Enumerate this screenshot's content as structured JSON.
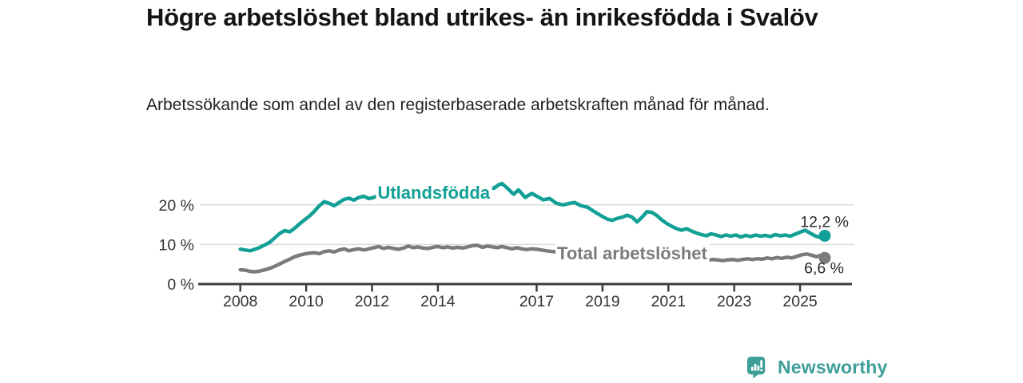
{
  "header": {
    "title": "Högre arbetslöshet bland utrikes- än inrikesfödda i Svalöv",
    "subtitle": "Arbetssökande som andel av den registerbaserade arbetskraften månad för månad."
  },
  "chart_data": {
    "type": "line",
    "title": "Högre arbetslöshet bland utrikes- än inrikesfödda i Svalöv",
    "subtitle": "Arbetssökande som andel av den registerbaserade arbetskraften månad för månad.",
    "grid": "horizontal-only",
    "legend_position": "inline-labels-on-lines",
    "x_range_years": [
      2006.77,
      2026.65
    ],
    "y_max_displayed": 26.5,
    "x_ticks": [
      {
        "year": 2008,
        "label": "2008"
      },
      {
        "year": 2010,
        "label": "2010"
      },
      {
        "year": 2012,
        "label": "2012"
      },
      {
        "year": 2014,
        "label": "2014"
      },
      {
        "year": 2017,
        "label": "2017"
      },
      {
        "year": 2019,
        "label": "2019"
      },
      {
        "year": 2021,
        "label": "2021"
      },
      {
        "year": 2023,
        "label": "2023"
      },
      {
        "year": 2025,
        "label": "2025"
      }
    ],
    "y_ticks": [
      {
        "value": 0,
        "label": "0 %"
      },
      {
        "value": 10,
        "label": "10 %"
      },
      {
        "value": 20,
        "label": "20 %"
      }
    ],
    "colors": {
      "grid": "#dcdcdc",
      "axis": "#3d3d3d",
      "tick_text": "#333333",
      "value_label_text": "#2b2b2b"
    },
    "series": [
      {
        "name": "Utlandsfödda",
        "color": "#12a096",
        "label_anchor": {
          "year": 2012.17,
          "value": 21.6
        },
        "end_dot": true,
        "end_label": "12,2 %",
        "end_value": 12.2,
        "end_label_offset": [
          30,
          -11
        ],
        "points": [
          [
            2008.0,
            8.8
          ],
          [
            2008.15,
            8.6
          ],
          [
            2008.3,
            8.4
          ],
          [
            2008.45,
            8.8
          ],
          [
            2008.6,
            9.3
          ],
          [
            2008.75,
            9.9
          ],
          [
            2008.9,
            10.6
          ],
          [
            2009.05,
            11.7
          ],
          [
            2009.2,
            12.8
          ],
          [
            2009.35,
            13.5
          ],
          [
            2009.5,
            13.2
          ],
          [
            2009.65,
            14.1
          ],
          [
            2009.8,
            15.2
          ],
          [
            2009.95,
            16.2
          ],
          [
            2010.1,
            17.2
          ],
          [
            2010.25,
            18.4
          ],
          [
            2010.4,
            19.8
          ],
          [
            2010.55,
            20.8
          ],
          [
            2010.7,
            20.4
          ],
          [
            2010.85,
            19.8
          ],
          [
            2011.0,
            20.6
          ],
          [
            2011.15,
            21.4
          ],
          [
            2011.3,
            21.7
          ],
          [
            2011.45,
            21.2
          ],
          [
            2011.6,
            21.9
          ],
          [
            2011.75,
            22.2
          ],
          [
            2011.9,
            21.6
          ],
          [
            2012.05,
            21.9
          ],
          [
            2012.2,
            22.4
          ],
          [
            2012.35,
            21.6
          ],
          [
            2012.5,
            21.4
          ],
          [
            2012.65,
            21.9
          ],
          [
            2012.8,
            22.2
          ],
          [
            2012.95,
            21.8
          ],
          [
            2013.1,
            22.3
          ],
          [
            2013.3,
            22.0
          ],
          [
            2013.5,
            22.6
          ],
          [
            2013.7,
            22.3
          ],
          [
            2013.9,
            22.8
          ],
          [
            2014.1,
            23.2
          ],
          [
            2014.3,
            22.9
          ],
          [
            2014.5,
            23.2
          ],
          [
            2014.7,
            23.5
          ],
          [
            2014.9,
            23.7
          ],
          [
            2015.1,
            24.2
          ],
          [
            2015.3,
            23.9
          ],
          [
            2015.5,
            24.5
          ],
          [
            2015.7,
            24.2
          ],
          [
            2015.85,
            25.1
          ],
          [
            2015.95,
            25.4
          ],
          [
            2016.1,
            24.3
          ],
          [
            2016.3,
            22.7
          ],
          [
            2016.45,
            23.8
          ],
          [
            2016.65,
            21.9
          ],
          [
            2016.85,
            22.9
          ],
          [
            2017.05,
            22.0
          ],
          [
            2017.2,
            21.3
          ],
          [
            2017.4,
            21.6
          ],
          [
            2017.6,
            20.4
          ],
          [
            2017.8,
            20.0
          ],
          [
            2018.0,
            20.4
          ],
          [
            2018.15,
            20.6
          ],
          [
            2018.35,
            19.8
          ],
          [
            2018.55,
            19.4
          ],
          [
            2018.75,
            18.3
          ],
          [
            2018.95,
            17.3
          ],
          [
            2019.15,
            16.4
          ],
          [
            2019.3,
            16.1
          ],
          [
            2019.45,
            16.6
          ],
          [
            2019.6,
            16.9
          ],
          [
            2019.75,
            17.4
          ],
          [
            2019.9,
            16.9
          ],
          [
            2020.05,
            15.7
          ],
          [
            2020.2,
            16.9
          ],
          [
            2020.35,
            18.3
          ],
          [
            2020.5,
            18.1
          ],
          [
            2020.65,
            17.3
          ],
          [
            2020.8,
            16.2
          ],
          [
            2020.95,
            15.3
          ],
          [
            2021.1,
            14.6
          ],
          [
            2021.25,
            14.0
          ],
          [
            2021.4,
            13.6
          ],
          [
            2021.55,
            14.0
          ],
          [
            2021.7,
            13.4
          ],
          [
            2021.85,
            12.9
          ],
          [
            2022.0,
            12.5
          ],
          [
            2022.15,
            12.2
          ],
          [
            2022.3,
            12.7
          ],
          [
            2022.45,
            12.4
          ],
          [
            2022.6,
            12.0
          ],
          [
            2022.75,
            12.4
          ],
          [
            2022.9,
            12.1
          ],
          [
            2023.05,
            12.4
          ],
          [
            2023.2,
            11.9
          ],
          [
            2023.35,
            12.3
          ],
          [
            2023.5,
            12.0
          ],
          [
            2023.65,
            12.4
          ],
          [
            2023.8,
            12.1
          ],
          [
            2023.95,
            12.3
          ],
          [
            2024.1,
            12.0
          ],
          [
            2024.25,
            12.5
          ],
          [
            2024.4,
            12.2
          ],
          [
            2024.55,
            12.4
          ],
          [
            2024.7,
            12.1
          ],
          [
            2024.85,
            12.6
          ],
          [
            2025.0,
            13.1
          ],
          [
            2025.15,
            13.6
          ],
          [
            2025.3,
            12.9
          ],
          [
            2025.45,
            12.2
          ],
          [
            2025.6,
            11.8
          ],
          [
            2025.75,
            12.2
          ]
        ]
      },
      {
        "name": "Total arbetslöshet",
        "color": "#7b7b7b",
        "label_anchor": {
          "year": 2017.62,
          "value": 6.25
        },
        "end_dot": true,
        "end_label": "6,6 %",
        "end_value": 6.6,
        "end_label_offset": [
          24,
          19
        ],
        "points": [
          [
            2008.0,
            3.6
          ],
          [
            2008.15,
            3.5
          ],
          [
            2008.3,
            3.2
          ],
          [
            2008.45,
            3.1
          ],
          [
            2008.6,
            3.3
          ],
          [
            2008.75,
            3.6
          ],
          [
            2008.9,
            4.0
          ],
          [
            2009.05,
            4.5
          ],
          [
            2009.2,
            5.1
          ],
          [
            2009.35,
            5.7
          ],
          [
            2009.5,
            6.3
          ],
          [
            2009.65,
            6.9
          ],
          [
            2009.8,
            7.3
          ],
          [
            2009.95,
            7.6
          ],
          [
            2010.1,
            7.8
          ],
          [
            2010.25,
            7.9
          ],
          [
            2010.4,
            7.7
          ],
          [
            2010.55,
            8.2
          ],
          [
            2010.7,
            8.4
          ],
          [
            2010.85,
            8.1
          ],
          [
            2011.0,
            8.6
          ],
          [
            2011.15,
            8.9
          ],
          [
            2011.3,
            8.4
          ],
          [
            2011.45,
            8.7
          ],
          [
            2011.6,
            8.9
          ],
          [
            2011.75,
            8.6
          ],
          [
            2011.9,
            8.9
          ],
          [
            2012.05,
            9.2
          ],
          [
            2012.2,
            9.5
          ],
          [
            2012.35,
            9.0
          ],
          [
            2012.5,
            9.3
          ],
          [
            2012.65,
            9.0
          ],
          [
            2012.8,
            8.8
          ],
          [
            2012.95,
            9.1
          ],
          [
            2013.1,
            9.6
          ],
          [
            2013.25,
            9.2
          ],
          [
            2013.4,
            9.4
          ],
          [
            2013.55,
            9.1
          ],
          [
            2013.7,
            9.0
          ],
          [
            2013.85,
            9.3
          ],
          [
            2014.0,
            9.5
          ],
          [
            2014.15,
            9.2
          ],
          [
            2014.3,
            9.4
          ],
          [
            2014.45,
            9.1
          ],
          [
            2014.6,
            9.3
          ],
          [
            2014.75,
            9.1
          ],
          [
            2014.9,
            9.4
          ],
          [
            2015.05,
            9.7
          ],
          [
            2015.2,
            9.8
          ],
          [
            2015.35,
            9.3
          ],
          [
            2015.5,
            9.6
          ],
          [
            2015.65,
            9.4
          ],
          [
            2015.8,
            9.2
          ],
          [
            2015.95,
            9.5
          ],
          [
            2016.1,
            9.2
          ],
          [
            2016.25,
            8.9
          ],
          [
            2016.4,
            9.2
          ],
          [
            2016.55,
            8.9
          ],
          [
            2016.7,
            8.7
          ],
          [
            2016.85,
            8.9
          ],
          [
            2017.0,
            8.8
          ],
          [
            2017.15,
            8.6
          ],
          [
            2017.3,
            8.4
          ],
          [
            2017.5,
            8.2
          ],
          [
            2017.75,
            7.9
          ],
          [
            2018.0,
            7.8
          ],
          [
            2018.25,
            7.7
          ],
          [
            2018.5,
            7.5
          ],
          [
            2018.75,
            7.4
          ],
          [
            2019.0,
            7.2
          ],
          [
            2019.25,
            7.1
          ],
          [
            2019.5,
            7.0
          ],
          [
            2019.75,
            7.1
          ],
          [
            2020.0,
            7.2
          ],
          [
            2020.25,
            7.3
          ],
          [
            2020.5,
            7.3
          ],
          [
            2020.75,
            7.1
          ],
          [
            2021.0,
            6.9
          ],
          [
            2021.25,
            6.7
          ],
          [
            2021.5,
            6.5
          ],
          [
            2021.75,
            6.3
          ],
          [
            2022.0,
            6.1
          ],
          [
            2022.2,
            6.0
          ],
          [
            2022.35,
            6.2
          ],
          [
            2022.5,
            6.1
          ],
          [
            2022.65,
            5.9
          ],
          [
            2022.8,
            6.1
          ],
          [
            2022.95,
            6.2
          ],
          [
            2023.1,
            6.0
          ],
          [
            2023.25,
            6.2
          ],
          [
            2023.4,
            6.4
          ],
          [
            2023.55,
            6.2
          ],
          [
            2023.7,
            6.4
          ],
          [
            2023.85,
            6.3
          ],
          [
            2024.0,
            6.6
          ],
          [
            2024.15,
            6.4
          ],
          [
            2024.3,
            6.7
          ],
          [
            2024.45,
            6.5
          ],
          [
            2024.6,
            6.8
          ],
          [
            2024.75,
            6.6
          ],
          [
            2024.9,
            7.0
          ],
          [
            2025.05,
            7.4
          ],
          [
            2025.2,
            7.6
          ],
          [
            2025.35,
            7.3
          ],
          [
            2025.5,
            6.9
          ],
          [
            2025.6,
            7.2
          ],
          [
            2025.75,
            6.6
          ]
        ]
      }
    ]
  },
  "footer": {
    "brand": "Newsworthy",
    "brand_color": "#3e9e98",
    "logo_icon": "bar-chart-speech-bubble-icon"
  }
}
